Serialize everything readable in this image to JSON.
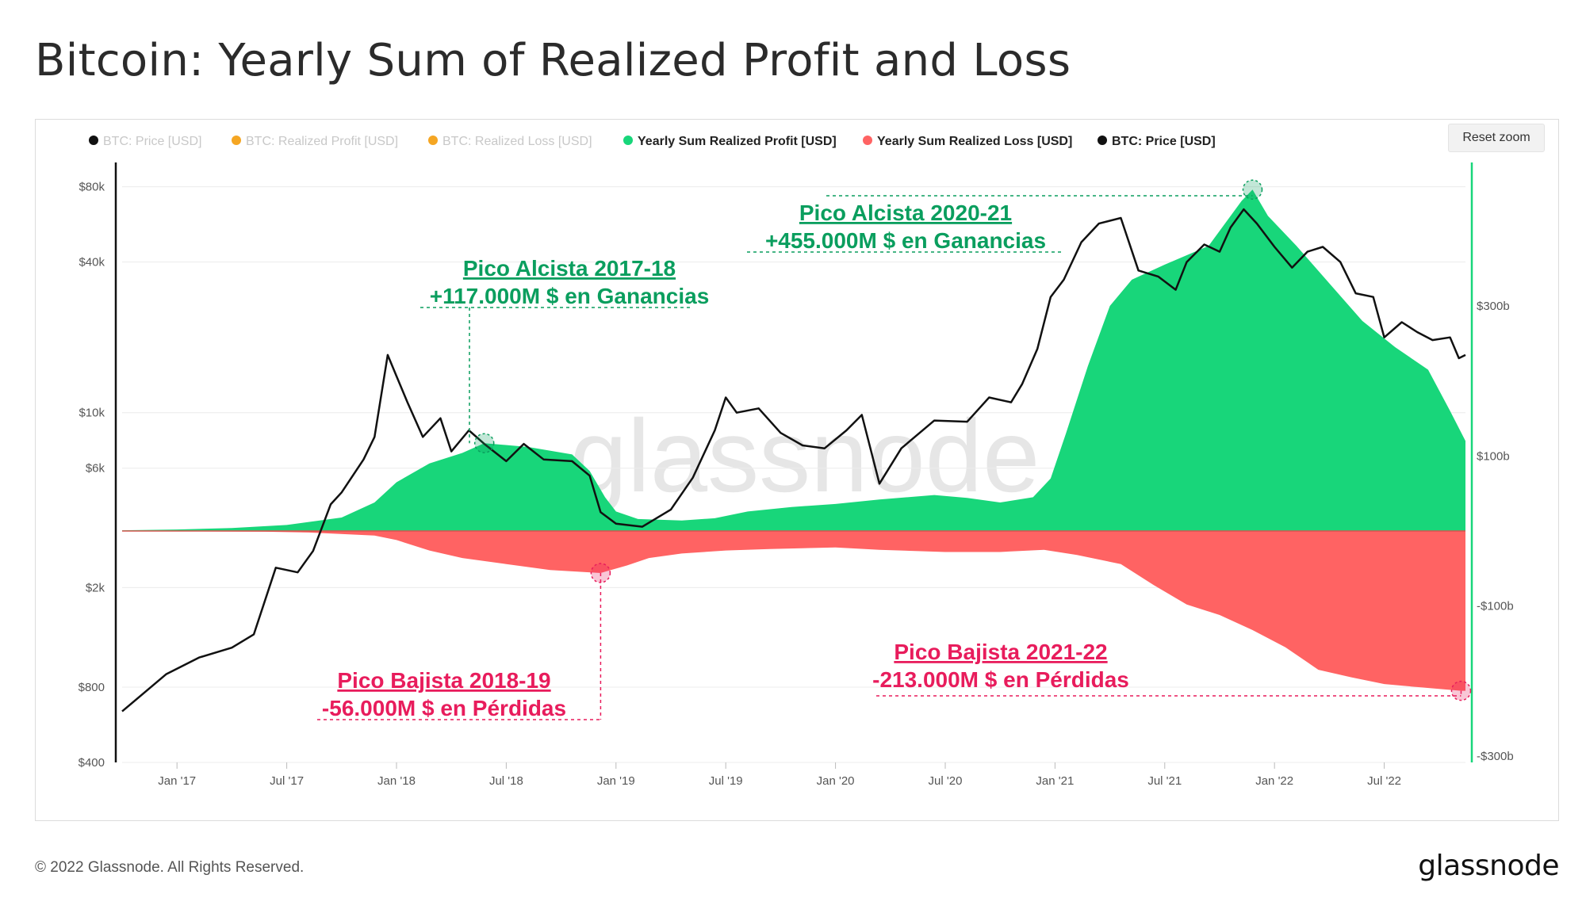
{
  "page": {
    "title": "Bitcoin: Yearly Sum of Realized Profit and Loss",
    "footer": "© 2022 Glassnode. All Rights Reserved.",
    "logo": "glassnode",
    "watermark": "glassnode",
    "reset_zoom": "Reset zoom"
  },
  "colors": {
    "profit": "#18d67a",
    "loss": "#ff6363",
    "price": "#111111",
    "hidden_legend": "#c8c8c8",
    "hidden_legend_dot": "#f5a623",
    "annotation_bull": "#0a9e5e",
    "annotation_bear": "#e81c5c"
  },
  "legend": [
    {
      "label": "BTC: Price [USD]",
      "active": false,
      "dot": "#111111"
    },
    {
      "label": "BTC: Realized Profit [USD]",
      "active": false,
      "dot": "#f5a623"
    },
    {
      "label": "BTC: Realized Loss [USD]",
      "active": false,
      "dot": "#f5a623"
    },
    {
      "label": "Yearly Sum Realized Profit [USD]",
      "active": true,
      "dot": "#18d67a"
    },
    {
      "label": "Yearly Sum Realized Loss [USD]",
      "active": true,
      "dot": "#ff6363"
    },
    {
      "label": "BTC: Price [USD]",
      "active": true,
      "dot": "#111111"
    }
  ],
  "annotations": [
    {
      "title": "Pico Alcista 2017-18",
      "value": "+117.000M $ en Ganancias",
      "kind": "bull",
      "date": 2018.4,
      "y": 117
    },
    {
      "title": "Pico Alcista  2020-21",
      "value": "+455.000M $ en Ganancias",
      "kind": "bull",
      "date": 2021.9,
      "y": 455
    },
    {
      "title": "Pico Bajista 2018-19",
      "value": "-56.000M $ en Pérdidas",
      "kind": "bear",
      "date": 2018.93,
      "y": -56
    },
    {
      "title": "Pico Bajista 2021-22",
      "value": "-213.000M $ en Pérdidas",
      "kind": "bear",
      "date": 2022.85,
      "y": -213
    }
  ],
  "chart_data": {
    "type": "area",
    "x_axis": {
      "ticks": [
        {
          "label": "Jan '17",
          "value": 2017.0
        },
        {
          "label": "Jul '17",
          "value": 2017.5
        },
        {
          "label": "Jan '18",
          "value": 2018.0
        },
        {
          "label": "Jul '18",
          "value": 2018.5
        },
        {
          "label": "Jan '19",
          "value": 2019.0
        },
        {
          "label": "Jul '19",
          "value": 2019.5
        },
        {
          "label": "Jan '20",
          "value": 2020.0
        },
        {
          "label": "Jul '20",
          "value": 2020.5
        },
        {
          "label": "Jan '21",
          "value": 2021.0
        },
        {
          "label": "Jul '21",
          "value": 2021.5
        },
        {
          "label": "Jan '22",
          "value": 2022.0
        },
        {
          "label": "Jul '22",
          "value": 2022.5
        }
      ],
      "range": [
        2016.75,
        2022.87
      ]
    },
    "y_left": {
      "scale": "log",
      "range": [
        400,
        100000
      ],
      "ticks": [
        {
          "label": "$400",
          "value": 400
        },
        {
          "label": "$800",
          "value": 800
        },
        {
          "label": "$2k",
          "value": 2000
        },
        {
          "label": "$6k",
          "value": 6000
        },
        {
          "label": "$10k",
          "value": 10000
        },
        {
          "label": "$40k",
          "value": 40000
        },
        {
          "label": "$80k",
          "value": 80000
        }
      ]
    },
    "y_right": {
      "scale": "linear",
      "range": [
        -300,
        500
      ],
      "ticks": [
        {
          "label": "$300b",
          "value": 300
        },
        {
          "label": "$100b",
          "value": 100
        },
        {
          "label": "-$100b",
          "value": -100
        },
        {
          "label": "-$300b",
          "value": -300
        }
      ]
    },
    "series": [
      {
        "name": "Yearly Sum Realized Profit [USD]",
        "unit": "billion USD",
        "points": [
          [
            2016.75,
            1
          ],
          [
            2017.0,
            2
          ],
          [
            2017.25,
            4
          ],
          [
            2017.5,
            8
          ],
          [
            2017.75,
            18
          ],
          [
            2017.9,
            38
          ],
          [
            2018.0,
            65
          ],
          [
            2018.15,
            90
          ],
          [
            2018.3,
            104
          ],
          [
            2018.4,
            117
          ],
          [
            2018.6,
            112
          ],
          [
            2018.8,
            102
          ],
          [
            2018.88,
            80
          ],
          [
            2018.95,
            45
          ],
          [
            2019.0,
            26
          ],
          [
            2019.1,
            16
          ],
          [
            2019.3,
            14
          ],
          [
            2019.45,
            17
          ],
          [
            2019.6,
            26
          ],
          [
            2019.8,
            32
          ],
          [
            2020.0,
            36
          ],
          [
            2020.2,
            42
          ],
          [
            2020.45,
            48
          ],
          [
            2020.6,
            44
          ],
          [
            2020.75,
            38
          ],
          [
            2020.9,
            45
          ],
          [
            2020.98,
            70
          ],
          [
            2021.05,
            130
          ],
          [
            2021.15,
            220
          ],
          [
            2021.25,
            300
          ],
          [
            2021.35,
            335
          ],
          [
            2021.5,
            355
          ],
          [
            2021.7,
            380
          ],
          [
            2021.85,
            440
          ],
          [
            2021.9,
            455
          ],
          [
            2021.97,
            420
          ],
          [
            2022.1,
            380
          ],
          [
            2022.25,
            330
          ],
          [
            2022.4,
            280
          ],
          [
            2022.55,
            245
          ],
          [
            2022.7,
            215
          ],
          [
            2022.8,
            160
          ],
          [
            2022.87,
            120
          ]
        ]
      },
      {
        "name": "Yearly Sum Realized Loss [USD]",
        "unit": "billion USD",
        "points": [
          [
            2016.75,
            0
          ],
          [
            2017.4,
            -1
          ],
          [
            2017.6,
            -2
          ],
          [
            2017.9,
            -6
          ],
          [
            2018.0,
            -12
          ],
          [
            2018.15,
            -26
          ],
          [
            2018.3,
            -36
          ],
          [
            2018.5,
            -44
          ],
          [
            2018.7,
            -52
          ],
          [
            2018.93,
            -56
          ],
          [
            2019.05,
            -46
          ],
          [
            2019.15,
            -36
          ],
          [
            2019.3,
            -30
          ],
          [
            2019.5,
            -26
          ],
          [
            2019.7,
            -24
          ],
          [
            2020.0,
            -22
          ],
          [
            2020.2,
            -25
          ],
          [
            2020.5,
            -28
          ],
          [
            2020.75,
            -28
          ],
          [
            2020.95,
            -25
          ],
          [
            2021.1,
            -32
          ],
          [
            2021.3,
            -44
          ],
          [
            2021.45,
            -72
          ],
          [
            2021.6,
            -98
          ],
          [
            2021.75,
            -112
          ],
          [
            2021.9,
            -132
          ],
          [
            2022.05,
            -155
          ],
          [
            2022.2,
            -185
          ],
          [
            2022.35,
            -195
          ],
          [
            2022.5,
            -204
          ],
          [
            2022.65,
            -208
          ],
          [
            2022.85,
            -213
          ],
          [
            2022.87,
            -213
          ]
        ]
      },
      {
        "name": "BTC: Price [USD]",
        "unit": "USD",
        "axis": "left",
        "points": [
          [
            2016.75,
            640
          ],
          [
            2016.95,
            900
          ],
          [
            2017.1,
            1050
          ],
          [
            2017.25,
            1150
          ],
          [
            2017.35,
            1300
          ],
          [
            2017.45,
            2400
          ],
          [
            2017.55,
            2300
          ],
          [
            2017.62,
            2800
          ],
          [
            2017.7,
            4300
          ],
          [
            2017.75,
            4800
          ],
          [
            2017.85,
            6500
          ],
          [
            2017.9,
            8000
          ],
          [
            2017.96,
            17000
          ],
          [
            2018.0,
            14000
          ],
          [
            2018.05,
            11000
          ],
          [
            2018.12,
            8000
          ],
          [
            2018.2,
            9500
          ],
          [
            2018.25,
            7000
          ],
          [
            2018.33,
            8500
          ],
          [
            2018.4,
            7500
          ],
          [
            2018.5,
            6400
          ],
          [
            2018.58,
            7500
          ],
          [
            2018.67,
            6500
          ],
          [
            2018.8,
            6400
          ],
          [
            2018.88,
            5600
          ],
          [
            2018.93,
            4000
          ],
          [
            2019.0,
            3600
          ],
          [
            2019.12,
            3500
          ],
          [
            2019.25,
            4100
          ],
          [
            2019.35,
            5500
          ],
          [
            2019.45,
            8500
          ],
          [
            2019.5,
            11500
          ],
          [
            2019.55,
            10000
          ],
          [
            2019.65,
            10400
          ],
          [
            2019.75,
            8300
          ],
          [
            2019.85,
            7400
          ],
          [
            2019.95,
            7200
          ],
          [
            2020.05,
            8500
          ],
          [
            2020.12,
            9800
          ],
          [
            2020.2,
            5200
          ],
          [
            2020.3,
            7200
          ],
          [
            2020.45,
            9300
          ],
          [
            2020.6,
            9200
          ],
          [
            2020.7,
            11500
          ],
          [
            2020.8,
            11000
          ],
          [
            2020.85,
            13000
          ],
          [
            2020.92,
            18000
          ],
          [
            2020.98,
            29000
          ],
          [
            2021.04,
            34000
          ],
          [
            2021.12,
            48000
          ],
          [
            2021.2,
            57000
          ],
          [
            2021.3,
            60000
          ],
          [
            2021.38,
            37000
          ],
          [
            2021.47,
            35000
          ],
          [
            2021.55,
            31000
          ],
          [
            2021.6,
            40000
          ],
          [
            2021.68,
            47000
          ],
          [
            2021.75,
            44000
          ],
          [
            2021.8,
            55000
          ],
          [
            2021.86,
            65000
          ],
          [
            2021.92,
            57000
          ],
          [
            2022.0,
            46000
          ],
          [
            2022.08,
            38000
          ],
          [
            2022.15,
            44000
          ],
          [
            2022.22,
            46000
          ],
          [
            2022.3,
            40000
          ],
          [
            2022.37,
            30000
          ],
          [
            2022.45,
            29000
          ],
          [
            2022.5,
            20000
          ],
          [
            2022.58,
            23000
          ],
          [
            2022.65,
            21000
          ],
          [
            2022.72,
            19500
          ],
          [
            2022.8,
            20000
          ],
          [
            2022.84,
            16500
          ],
          [
            2022.87,
            17000
          ]
        ]
      }
    ]
  }
}
